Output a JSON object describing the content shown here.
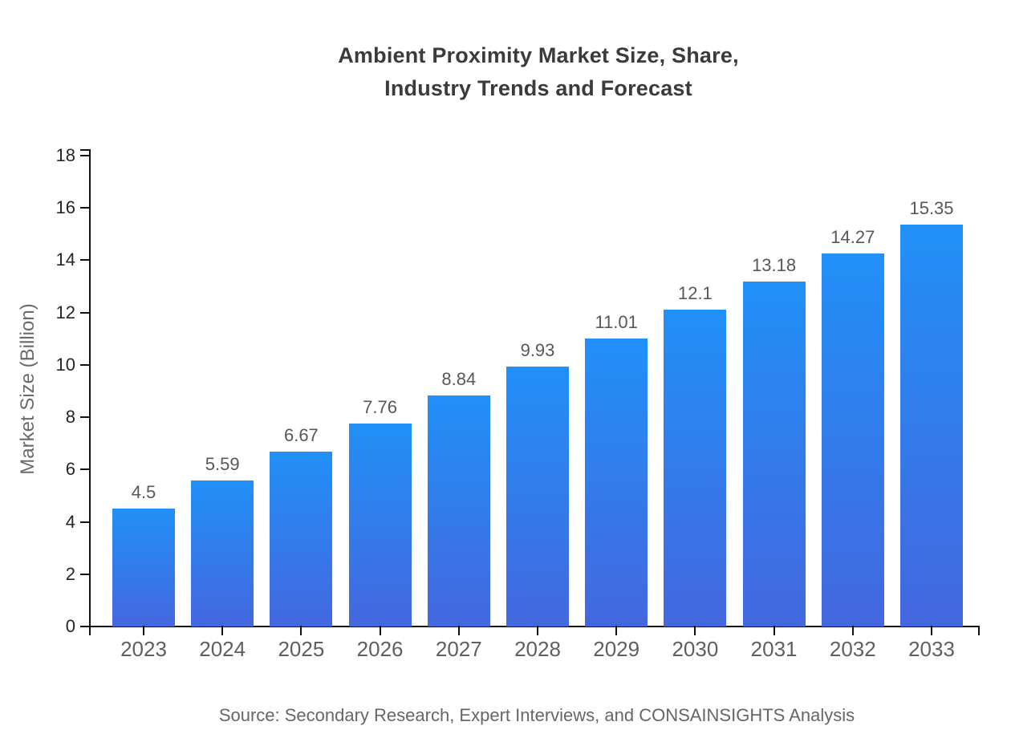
{
  "title": {
    "line1": "Ambient Proximity Market Size, Share,",
    "line2": "Industry Trends and Forecast"
  },
  "source": "Source: Secondary Research, Expert Interviews, and CONSAINSIGHTS Analysis",
  "chart_data": {
    "type": "bar",
    "title": "Ambient Proximity Market Size, Share, Industry Trends and Forecast",
    "categories": [
      "2023",
      "2024",
      "2025",
      "2026",
      "2027",
      "2028",
      "2029",
      "2030",
      "2031",
      "2032",
      "2033"
    ],
    "values": [
      4.5,
      5.59,
      6.67,
      7.76,
      8.84,
      9.93,
      11.01,
      12.1,
      13.18,
      14.27,
      15.35
    ],
    "value_labels": [
      "4.5",
      "5.59",
      "6.67",
      "7.76",
      "8.84",
      "9.93",
      "11.01",
      "12.1",
      "13.18",
      "14.27",
      "15.35"
    ],
    "xlabel": "",
    "ylabel": "Market Size (Billion)",
    "ylim": [
      0,
      18
    ],
    "yticks": [
      0,
      2,
      4,
      6,
      8,
      10,
      12,
      14,
      16,
      18
    ],
    "grid": false,
    "legend": false,
    "bar_color_top": "#2190f8",
    "bar_color_bottom": "#4467de"
  },
  "colors": {
    "axis": "#111111",
    "title_text": "#3b3b3b",
    "y_tick_text": "#262626",
    "x_tick_text": "#5d6063",
    "value_label_text": "#58585a",
    "secondary_text": "#6a6a6a",
    "background": "#ffffff"
  }
}
